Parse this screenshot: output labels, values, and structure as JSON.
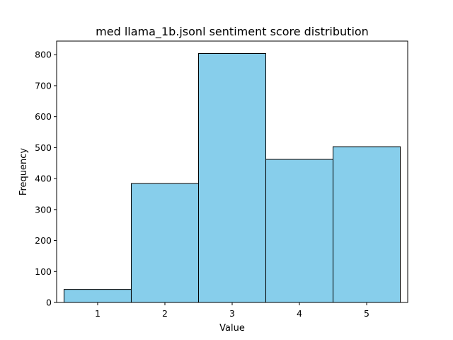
{
  "chart_data": {
    "type": "bar",
    "title": "med llama_1b.jsonl sentiment score distribution",
    "xlabel": "Value",
    "ylabel": "Frequency",
    "categories": [
      "1",
      "2",
      "3",
      "4",
      "5"
    ],
    "values": [
      42,
      384,
      804,
      462,
      503
    ],
    "xlim": [
      0.39,
      5.61
    ],
    "ylim": [
      0,
      844
    ],
    "yticks": [
      0,
      100,
      200,
      300,
      400,
      500,
      600,
      700,
      800
    ],
    "grid": false,
    "bar_color": "#87ceeb",
    "edge_color": "#000000"
  }
}
